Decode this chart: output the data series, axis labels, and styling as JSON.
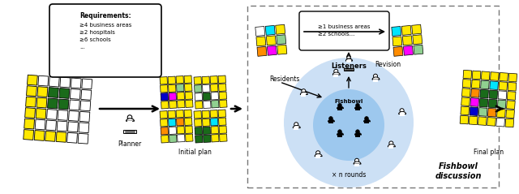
{
  "bg_color": "#ffffff",
  "yellow": "#FFE800",
  "dark_green": "#1a6b1a",
  "light_green": "#90d090",
  "orange": "#FF8C00",
  "cyan": "#00E5FF",
  "magenta": "#FF00FF",
  "blue_dark": "#0000CD",
  "white": "#ffffff",
  "gray": "#aaaaaa",
  "light_blue1": "#cce0f5",
  "light_blue2": "#9dc8ee",
  "labels": {
    "planner": "Planner",
    "initial_plan": "Initial plan",
    "residents": "Residents",
    "revision": "Revision",
    "listeners": "Listeners",
    "fishbowl": "Fishbowl",
    "fishbowl_discussion": "Fishbowl\ndiscussion",
    "n_rounds": "× n rounds",
    "final_plan": "Final plan"
  },
  "req_title": "Requirements:",
  "req_body": "≥4 business areas\n≥2 hospitals\n≥6 schools\n...",
  "rev_body": "≥1 business areas\n≥2 schools..."
}
